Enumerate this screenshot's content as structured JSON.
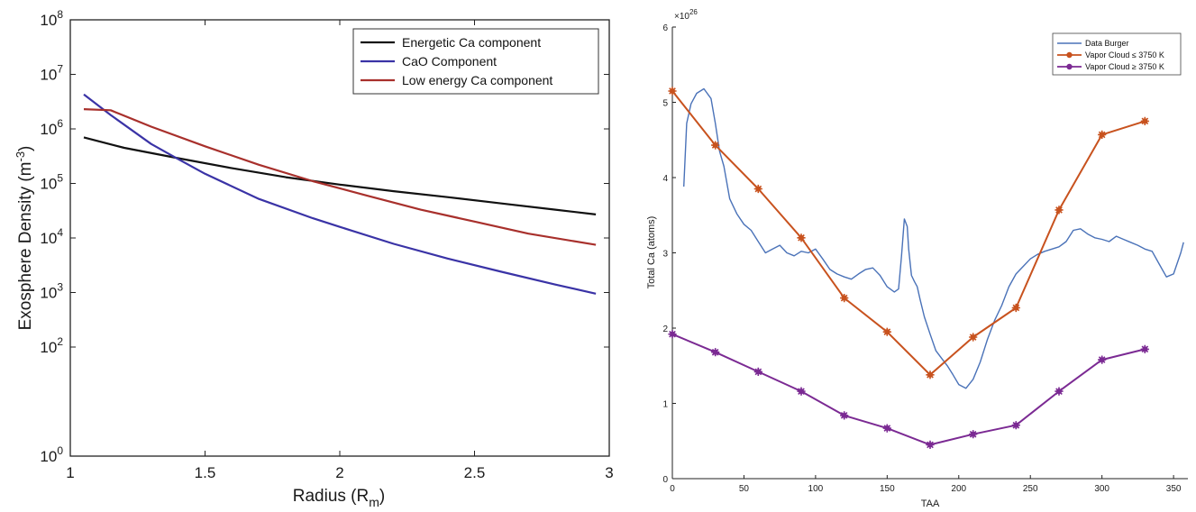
{
  "chart_data": [
    {
      "type": "line",
      "xlabel_main": "Radius (R",
      "xlabel_sub": "m",
      "xlabel_close": ")",
      "ylabel_main": "Exosphere Density (m",
      "ylabel_sup": "-3",
      "ylabel_close": ")",
      "xlim": [
        1,
        3
      ],
      "ylim": [
        1,
        100000000
      ],
      "yscale": "log",
      "x_ticks": [
        1,
        1.5,
        2,
        2.5,
        3
      ],
      "x_tick_labels": [
        "1",
        "1.5",
        "2",
        "2.5",
        "3"
      ],
      "y_ticks": [
        {
          "exp": "0",
          "value": 1
        },
        {
          "exp": "2",
          "value": 100
        },
        {
          "exp": "3",
          "value": 1000
        },
        {
          "exp": "4",
          "value": 10000
        },
        {
          "exp": "5",
          "value": 100000
        },
        {
          "exp": "6",
          "value": 1000000
        },
        {
          "exp": "7",
          "value": 10000000
        },
        {
          "exp": "8",
          "value": 100000000
        }
      ],
      "y_tick_base": "10",
      "legend_position": "top-right",
      "series": [
        {
          "name": "Energetic Ca component",
          "color": "#111111",
          "x": [
            1.05,
            1.2,
            1.4,
            1.6,
            1.8,
            2.0,
            2.2,
            2.4,
            2.6,
            2.8,
            2.95
          ],
          "y": [
            700000,
            450000,
            290000,
            190000,
            130000,
            95000,
            72000,
            56000,
            43000,
            33000,
            27000
          ]
        },
        {
          "name": "CaO Component",
          "color": "#3a33a6",
          "x": [
            1.05,
            1.15,
            1.3,
            1.4,
            1.5,
            1.7,
            1.9,
            2.0,
            2.2,
            2.4,
            2.6,
            2.8,
            2.95
          ],
          "y": [
            4300000,
            1800000,
            530000,
            280000,
            150000,
            52000,
            23000,
            16000,
            7800,
            4200,
            2400,
            1400,
            950
          ]
        },
        {
          "name": "Low energy Ca component",
          "color": "#a8302c",
          "x": [
            1.05,
            1.15,
            1.3,
            1.5,
            1.7,
            1.9,
            2.1,
            2.3,
            2.5,
            2.7,
            2.95
          ],
          "y": [
            2300000,
            2200000,
            1100000,
            480000,
            220000,
            110000,
            60000,
            33000,
            20000,
            12000,
            7500
          ]
        }
      ]
    },
    {
      "type": "line",
      "xlabel": "TAA",
      "ylabel": "Total Ca (atoms)",
      "xlim": [
        0,
        360
      ],
      "ylim": [
        0,
        6
      ],
      "y_exponent_label": "×10",
      "y_exponent_value": "26",
      "x_ticks": [
        "0",
        "50",
        "100",
        "150",
        "200",
        "250",
        "300",
        "350"
      ],
      "y_ticks": [
        "0",
        "1",
        "2",
        "3",
        "4",
        "5",
        "6"
      ],
      "legend_position": "top-right",
      "series": [
        {
          "name": "Data Burger",
          "color": "#4a72b8",
          "marker": "none",
          "x": [
            8,
            10,
            13,
            17,
            22,
            27,
            30,
            33,
            36,
            40,
            45,
            50,
            55,
            60,
            65,
            70,
            75,
            80,
            85,
            90,
            95,
            100,
            105,
            110,
            115,
            120,
            125,
            130,
            135,
            140,
            145,
            150,
            155,
            158,
            160,
            162,
            164,
            165,
            167,
            169,
            171,
            173,
            176,
            180,
            184,
            188,
            192,
            196,
            200,
            205,
            210,
            215,
            220,
            225,
            230,
            235,
            240,
            245,
            250,
            255,
            260,
            265,
            270,
            275,
            280,
            285,
            290,
            295,
            300,
            305,
            310,
            315,
            320,
            325,
            330,
            335,
            340,
            345,
            350,
            355,
            357
          ],
          "y": [
            3.88,
            4.72,
            4.98,
            5.12,
            5.18,
            5.05,
            4.72,
            4.35,
            4.15,
            3.72,
            3.52,
            3.38,
            3.3,
            3.15,
            3.0,
            3.05,
            3.1,
            3.0,
            2.96,
            3.02,
            3.0,
            3.05,
            2.92,
            2.78,
            2.72,
            2.68,
            2.65,
            2.72,
            2.78,
            2.8,
            2.7,
            2.55,
            2.48,
            2.52,
            2.95,
            3.45,
            3.35,
            3.05,
            2.7,
            2.62,
            2.55,
            2.38,
            2.15,
            1.92,
            1.7,
            1.6,
            1.5,
            1.38,
            1.25,
            1.2,
            1.32,
            1.55,
            1.85,
            2.1,
            2.3,
            2.55,
            2.72,
            2.82,
            2.92,
            2.98,
            3.02,
            3.05,
            3.08,
            3.15,
            3.3,
            3.32,
            3.25,
            3.2,
            3.18,
            3.15,
            3.22,
            3.18,
            3.14,
            3.1,
            3.05,
            3.02,
            2.85,
            2.68,
            2.72,
            3.0,
            3.14
          ]
        },
        {
          "name": "Vapor Cloud ≤  3750 K",
          "color": "#c8521e",
          "marker": "star",
          "x": [
            0,
            30,
            60,
            90,
            120,
            150,
            180,
            210,
            240,
            270,
            300,
            330
          ],
          "y": [
            5.15,
            4.43,
            3.85,
            3.2,
            2.4,
            1.95,
            1.38,
            1.88,
            2.27,
            3.57,
            4.57,
            4.75
          ]
        },
        {
          "name": "Vapor Cloud ≥  3750 K",
          "color": "#7b2a93",
          "marker": "star",
          "x": [
            0,
            30,
            60,
            90,
            120,
            150,
            180,
            210,
            240,
            270,
            300,
            330
          ],
          "y": [
            1.92,
            1.68,
            1.42,
            1.16,
            0.84,
            0.67,
            0.45,
            0.59,
            0.71,
            1.16,
            1.58,
            1.72
          ]
        }
      ]
    }
  ]
}
